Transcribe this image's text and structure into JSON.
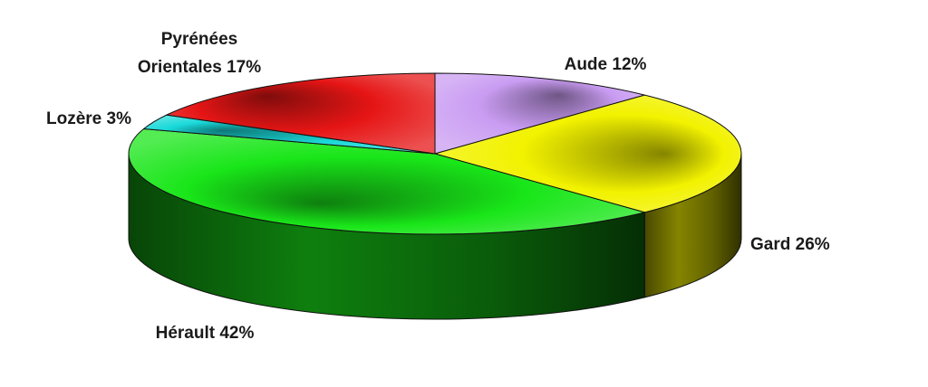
{
  "chart_data": {
    "type": "pie",
    "style": "3d",
    "title": "",
    "slices": [
      {
        "name": "Aude",
        "value": 12,
        "label": "Aude 12%",
        "color": "#c99cf2"
      },
      {
        "name": "Gard",
        "value": 26,
        "label": "Gard 26%",
        "color": "#f2f200"
      },
      {
        "name": "Hérault",
        "value": 42,
        "label": "Hérault 42%",
        "color": "#19e619"
      },
      {
        "name": "Lozère",
        "value": 3,
        "label": "Lozère 3%",
        "color": "#1ad9d9"
      },
      {
        "name": "Pyrénées Orientales",
        "value": 17,
        "label_lines": [
          "Pyrénées",
          "Orientales 17%"
        ],
        "color": "#e61515"
      }
    ]
  }
}
